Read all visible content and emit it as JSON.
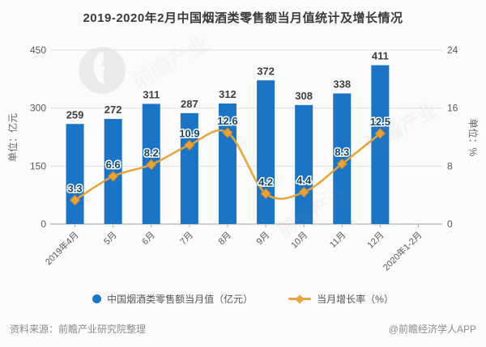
{
  "title": "2019-2020年2月中国烟酒类零售额当月值统计及增长情况",
  "chart_data": {
    "type": "bar",
    "categories": [
      "2019年4月",
      "5月",
      "6月",
      "7月",
      "8月",
      "9月",
      "10月",
      "11月",
      "12月",
      "2020年1-2月"
    ],
    "series": [
      {
        "name": "中国烟酒类零售额当月值（亿元）",
        "type": "bar",
        "axis": "left",
        "color": "#1B74C4",
        "values": [
          259,
          272,
          311,
          287,
          312,
          372,
          308,
          338,
          411,
          null
        ]
      },
      {
        "name": "当月增长率（%）",
        "type": "line",
        "axis": "right",
        "color": "#E7A33C",
        "marker": "diamond",
        "values": [
          3.3,
          6.6,
          8.2,
          10.9,
          12.6,
          4.2,
          4.4,
          8.3,
          12.5,
          null
        ]
      }
    ],
    "left_axis": {
      "label": "单位：亿元",
      "ticks": [
        0,
        150,
        300,
        450
      ],
      "min": 0,
      "max": 450
    },
    "right_axis": {
      "label": "单位：%",
      "ticks": [
        0,
        8,
        16,
        24
      ],
      "min": 0,
      "max": 24
    },
    "grid": true,
    "legend_position": "bottom"
  },
  "footer": {
    "source": "资料来源：前瞻产业研究院整理",
    "credit": "@前瞻经济学人APP"
  },
  "watermark": {
    "text": "前瞻产业",
    "color": "#c9c9c9"
  }
}
